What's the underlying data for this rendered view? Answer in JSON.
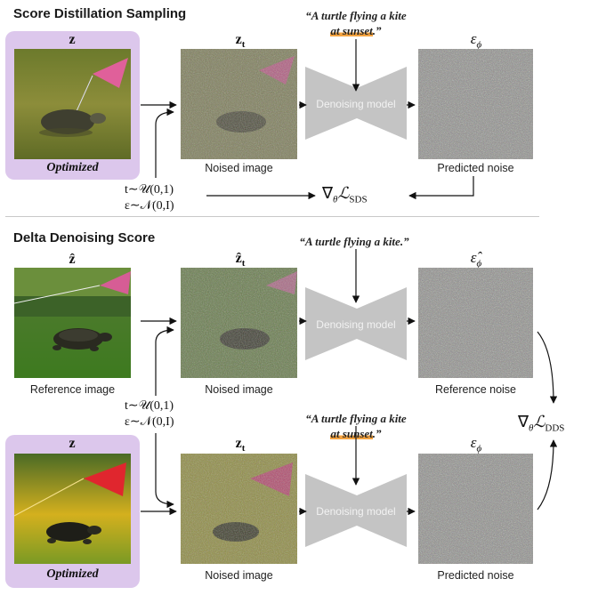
{
  "sds": {
    "title": "Score Distillation Sampling",
    "prompt_pre": "“A turtle flying a kite",
    "prompt_hl": "at sunset",
    "prompt_post": ".”",
    "z_label": "z",
    "zt_label": "z",
    "zt_sub": "t",
    "eps_label": "ε",
    "eps_sub": "ϕ",
    "optimized_label": "Optimized",
    "noised_caption": "Noised image",
    "denoise_caption": "Denoising model",
    "predicted_caption": "Predicted noise",
    "t_sample": "t∼𝒰(0,1)",
    "eps_sample": "ε∼𝒩(0,I)",
    "grad_nabla": "∇",
    "grad_theta": "θ",
    "grad_L": "ℒ",
    "grad_sub": "SDS"
  },
  "dds": {
    "title": "Delta Denoising Score",
    "ref_prompt": "“A turtle flying a kite.”",
    "prompt_pre": "“A turtle flying a kite",
    "prompt_hl": "at sunset",
    "prompt_post": ".”",
    "zhat_label": "ẑ",
    "zhat_t_label": "ẑ",
    "zhat_t_sub": "t",
    "epshat_label": "ε̂",
    "epshat_sub": "ϕ",
    "z_label": "z",
    "zt_label": "z",
    "zt_sub": "t",
    "eps_label": "ε",
    "eps_sub": "ϕ",
    "reference_caption": "Reference image",
    "noised_caption_top": "Noised image",
    "reference_noise_caption": "Reference noise",
    "t_sample": "t∼𝒰(0,1)",
    "eps_sample": "ε∼𝒩(0,I)",
    "denoise_caption_top": "Denoising model",
    "denoise_caption_bottom": "Denoising model",
    "optimized_label": "Optimized",
    "noised_caption_bottom": "Noised image",
    "predicted_caption": "Predicted noise",
    "grad_nabla": "∇",
    "grad_theta": "θ",
    "grad_L": "ℒ",
    "grad_sub": "DDS"
  },
  "colors": {
    "lilac": "#dcc7ec",
    "highlight": "#f4a340",
    "denoiser": "#c4c4c4",
    "arrow": "#111111"
  }
}
